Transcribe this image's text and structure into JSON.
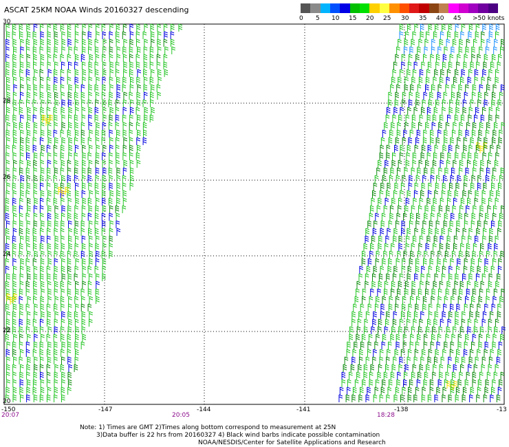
{
  "title": "ASCAT 25KM NOAA Winds 20160327 descending",
  "legend": {
    "colors": [
      "#555555",
      "#8a8a8a",
      "#00b4ff",
      "#0050ff",
      "#0000e6",
      "#00c000",
      "#00e000",
      "#ffd000",
      "#ffff40",
      "#ff9000",
      "#ff5000",
      "#e01818",
      "#c00000",
      "#8b4513",
      "#c08050",
      "#ff00ff",
      "#d000d0",
      "#a000c0",
      "#7000a0",
      "#4b0082"
    ],
    "labels": [
      "0",
      "5",
      "10",
      "15",
      "20",
      "25",
      "30",
      "35",
      "40",
      "45",
      ">50 knots"
    ]
  },
  "lat_labels": [
    "30",
    "28",
    "26",
    "24",
    "22",
    "20"
  ],
  "lon_labels": [
    "-150",
    "-147",
    "-144",
    "-141",
    "-138",
    "-13"
  ],
  "time_labels": [
    "20:07",
    "20:05",
    "18:28"
  ],
  "notes": {
    "line1": "Note: 1) Times are GMT 2)Times along bottom correspond to measurement at 25N",
    "line2": "3)Data buffer is 22 hrs from 20160327 4) Black wind barbs indicate possible contamination",
    "line3": "NOAA/NESDIS/Center for Satellite Applications and Research"
  },
  "barb_colors": {
    "green": "#22c422",
    "dark_green": "#0a8a0a",
    "blue": "#0000e0",
    "light_blue": "#1e90ff",
    "yellow": "#ffe000"
  }
}
